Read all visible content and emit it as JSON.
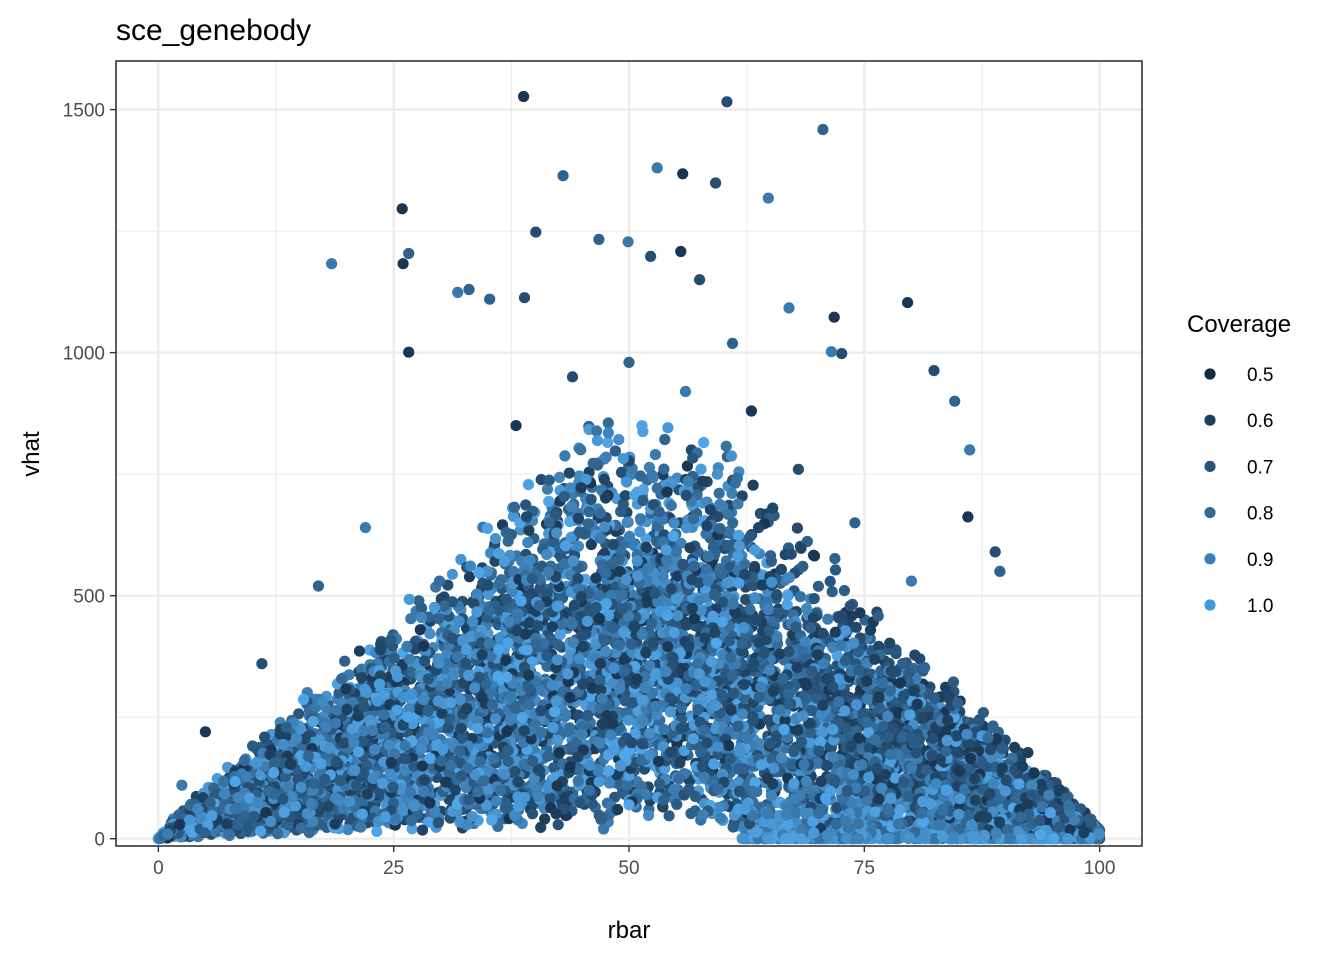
{
  "chart_data": {
    "type": "scatter",
    "title": "sce_genebody",
    "xlabel": "rbar",
    "ylabel": "vhat",
    "xlim": [
      -4.5,
      104.5
    ],
    "ylim": [
      -15,
      1600
    ],
    "x_ticks": [
      0,
      25,
      50,
      75,
      100
    ],
    "x_tick_labels": [
      "0",
      "25",
      "50",
      "75",
      "100"
    ],
    "y_ticks": [
      0,
      500,
      1000,
      1500
    ],
    "y_tick_labels": [
      "0",
      "500",
      "1000",
      "1500"
    ],
    "grid": true,
    "legend": {
      "title": "Coverage",
      "position": "right",
      "entries": [
        {
          "label": "0.5",
          "color": "#132b43"
        },
        {
          "label": "0.6",
          "color": "#1d3f5d"
        },
        {
          "label": "0.7",
          "color": "#26547a"
        },
        {
          "label": "0.8",
          "color": "#306a98"
        },
        {
          "label": "0.9",
          "color": "#3a80b8"
        },
        {
          "label": "1.0",
          "color": "#4497d8"
        }
      ]
    },
    "point_color_low": "#132b43",
    "point_color_high": "#56b1f7",
    "n_points": 9000,
    "series": [
      {
        "name": "points",
        "x": [
          38.8,
          60.4,
          70.6,
          53.0,
          55.7,
          59.2,
          43.0,
          64.8,
          25.9,
          40.1,
          46.8,
          49.9,
          55.5,
          52.3,
          26.6,
          18.4,
          26.0,
          57.5,
          33.0,
          31.8,
          79.6,
          38.9,
          35.2,
          67.0,
          71.8,
          72.6,
          61.0,
          71.5,
          26.6,
          82.4,
          84.6,
          86.2,
          86.0,
          88.9,
          89.4,
          47.3,
          97.5,
          100.0,
          0.0,
          2.5,
          5.0,
          11.0,
          17.0,
          22.0,
          38.0,
          44.0,
          50.0,
          56.0,
          63.0,
          68.0,
          74.0,
          80.0
        ],
        "y": [
          1527,
          1516,
          1459,
          1380,
          1368,
          1349,
          1364,
          1318,
          1296,
          1248,
          1233,
          1228,
          1208,
          1198,
          1204,
          1183,
          1183,
          1150,
          1130,
          1124,
          1103,
          1113,
          1110,
          1092,
          1073,
          998,
          1019,
          1002,
          1001,
          963,
          900,
          800,
          662,
          590,
          550,
          20,
          0,
          0,
          0,
          110,
          220,
          360,
          520,
          640,
          850,
          950,
          980,
          920,
          880,
          760,
          650,
          530
        ]
      }
    ]
  }
}
